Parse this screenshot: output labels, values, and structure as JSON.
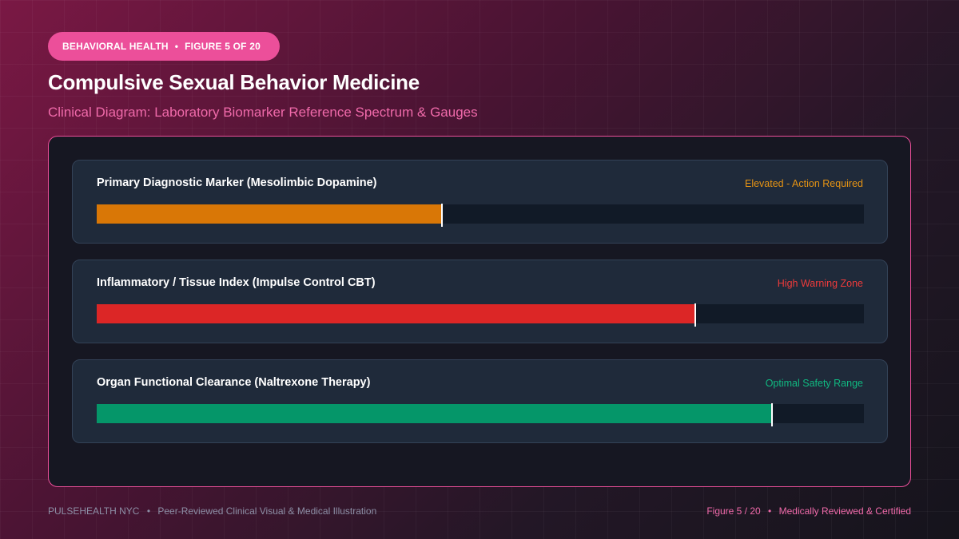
{
  "header": {
    "category": "BEHAVIORAL HEALTH",
    "separator": "•",
    "figure_label": "FIGURE 5 OF 20",
    "title": "Compulsive Sexual Behavior Medicine",
    "subtitle": "Clinical Diagram: Laboratory Biomarker Reference Spectrum & Gauges"
  },
  "gauges": [
    {
      "label": "Primary Diagnostic Marker (Mesolimbic Dopamine)",
      "status": "Elevated - Action Required",
      "status_color": "#e69414",
      "fill_color": "#d97706",
      "level": 0.45
    },
    {
      "label": "Inflammatory / Tissue Index (Impulse Control CBT)",
      "status": "High Warning Zone",
      "status_color": "#ef3b3b",
      "fill_color": "#dc2626",
      "level": 0.78
    },
    {
      "label": "Organ Functional Clearance (Naltrexone Therapy)",
      "status": "Optimal Safety Range",
      "status_color": "#10b981",
      "fill_color": "#059669",
      "level": 0.88
    }
  ],
  "footer": {
    "brand": "PULSEHEALTH NYC",
    "separator": "•",
    "tagline": "Peer-Reviewed Clinical Visual & Medical Illustration",
    "figure_count": "Figure 5 / 20",
    "certification": "Medically Reviewed & Certified"
  },
  "colors": {
    "accent": "#ec4f9a",
    "accent_text": "#f06aaa",
    "marker": "#ffffff",
    "track": "#111a27"
  }
}
